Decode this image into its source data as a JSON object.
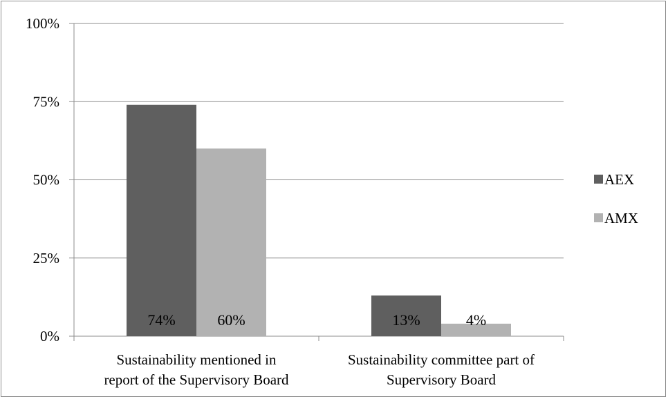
{
  "chart_data": {
    "type": "bar",
    "categories": [
      [
        "Sustainability mentioned in",
        "report of the Supervisory Board"
      ],
      [
        "Sustainability committee part of",
        "Supervisory Board"
      ]
    ],
    "series": [
      {
        "name": "AEX",
        "values": [
          74,
          13
        ],
        "labels": [
          "74%",
          "13%"
        ],
        "color": "#5f5f5f"
      },
      {
        "name": "AMX",
        "values": [
          60,
          4
        ],
        "labels": [
          "60%",
          "4%"
        ],
        "color": "#b2b2b2"
      }
    ],
    "yticks": [
      "0%",
      "25%",
      "50%",
      "75%",
      "100%"
    ],
    "ylim": [
      0,
      100
    ],
    "grid": true,
    "legend": "right",
    "title": "",
    "xlabel": "",
    "ylabel": ""
  }
}
